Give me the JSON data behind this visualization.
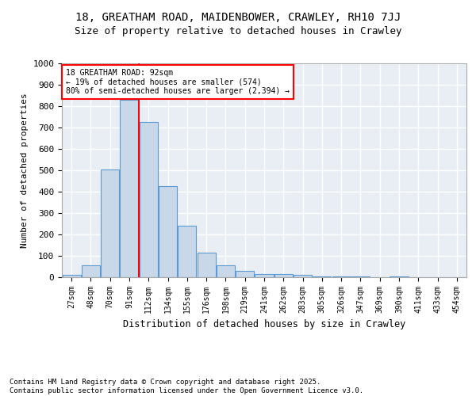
{
  "title1": "18, GREATHAM ROAD, MAIDENBOWER, CRAWLEY, RH10 7JJ",
  "title2": "Size of property relative to detached houses in Crawley",
  "xlabel": "Distribution of detached houses by size in Crawley",
  "ylabel": "Number of detached properties",
  "bar_labels": [
    "27sqm",
    "48sqm",
    "70sqm",
    "91sqm",
    "112sqm",
    "134sqm",
    "155sqm",
    "176sqm",
    "198sqm",
    "219sqm",
    "241sqm",
    "262sqm",
    "283sqm",
    "305sqm",
    "326sqm",
    "347sqm",
    "369sqm",
    "390sqm",
    "411sqm",
    "433sqm",
    "454sqm"
  ],
  "bar_values": [
    10,
    55,
    505,
    830,
    725,
    425,
    240,
    115,
    55,
    30,
    15,
    15,
    10,
    5,
    5,
    5,
    0,
    5,
    0,
    0,
    0
  ],
  "bar_color": "#c8d8e8",
  "bar_edge_color": "#5b9bd5",
  "annotation_line1": "18 GREATHAM ROAD: 92sqm",
  "annotation_line2": "← 19% of detached houses are smaller (574)",
  "annotation_line3": "80% of semi-detached houses are larger (2,394) →",
  "red_line_x": 3,
  "ylim": [
    0,
    1000
  ],
  "yticks": [
    0,
    100,
    200,
    300,
    400,
    500,
    600,
    700,
    800,
    900,
    1000
  ],
  "background_color": "#e8eef4",
  "grid_color": "#ffffff",
  "footer_text": "Contains HM Land Registry data © Crown copyright and database right 2025.\nContains public sector information licensed under the Open Government Licence v3.0.",
  "title1_fontsize": 10,
  "title2_fontsize": 9,
  "footer_fontsize": 6.5
}
